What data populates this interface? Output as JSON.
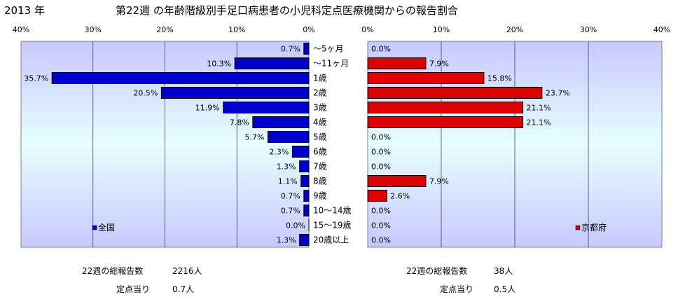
{
  "header": {
    "year": "2013 年",
    "title": "第22週 の年齢階級別手足口病患者の小児科定点医療機関からの報告割合"
  },
  "colors": {
    "national_bar": "#0000cc",
    "kyoto_bar": "#dd0000",
    "plot_top": "#c8c8ff",
    "plot_bottom": "#e6ffff"
  },
  "chart_data": [
    {
      "type": "bar",
      "orientation": "horizontal",
      "direction": "right-to-left",
      "categories": [
        "～5ヶ月",
        "～11ヶ月",
        "1歳",
        "2歳",
        "3歳",
        "4歳",
        "5歳",
        "6歳",
        "7歳",
        "8歳",
        "9歳",
        "10～14歳",
        "15～19歳",
        "20歳以上"
      ],
      "series": [
        {
          "name": "全国",
          "values": [
            0.7,
            10.3,
            35.7,
            20.5,
            11.9,
            7.8,
            5.7,
            2.3,
            1.3,
            1.1,
            0.7,
            0.7,
            0.0,
            1.3
          ],
          "labels": [
            "0.7%",
            "10.3%",
            "35.7%",
            "20.5%",
            "11.9%",
            "7.8%",
            "5.7%",
            "2.3%",
            "1.3%",
            "1.1%",
            "0.7%",
            "0.7%",
            "0.0%",
            "1.3%"
          ]
        }
      ],
      "xlim": [
        0,
        40
      ],
      "ticks": [
        "40%",
        "30%",
        "20%",
        "10%",
        "0%"
      ],
      "grid": true,
      "legend": "bottom-left"
    },
    {
      "type": "bar",
      "orientation": "horizontal",
      "direction": "left-to-right",
      "categories": [
        "～5ヶ月",
        "～11ヶ月",
        "1歳",
        "2歳",
        "3歳",
        "4歳",
        "5歳",
        "6歳",
        "7歳",
        "8歳",
        "9歳",
        "10～14歳",
        "15～19歳",
        "20歳以上"
      ],
      "series": [
        {
          "name": "京都府",
          "values": [
            0.0,
            7.9,
            15.8,
            23.7,
            21.1,
            21.1,
            0.0,
            0.0,
            0.0,
            7.9,
            2.6,
            0.0,
            0.0,
            0.0
          ],
          "labels": [
            "0.0%",
            "7.9%",
            "15.8%",
            "23.7%",
            "21.1%",
            "21.1%",
            "0.0%",
            "0.0%",
            "0.0%",
            "7.9%",
            "2.6%",
            "0.0%",
            "0.0%",
            "0.0%"
          ]
        }
      ],
      "xlim": [
        0,
        40
      ],
      "ticks": [
        "0%",
        "10%",
        "20%",
        "30%",
        "40%"
      ],
      "grid": true,
      "legend": "bottom-right"
    }
  ],
  "footer": {
    "national": {
      "total_label": "22週の総報告数",
      "total_value": "2216人",
      "per_label": "定点当り",
      "per_value": "0.7人"
    },
    "kyoto": {
      "total_label": "22週の総報告数",
      "total_value": "38人",
      "per_label": "定点当り",
      "per_value": "0.5人"
    }
  }
}
